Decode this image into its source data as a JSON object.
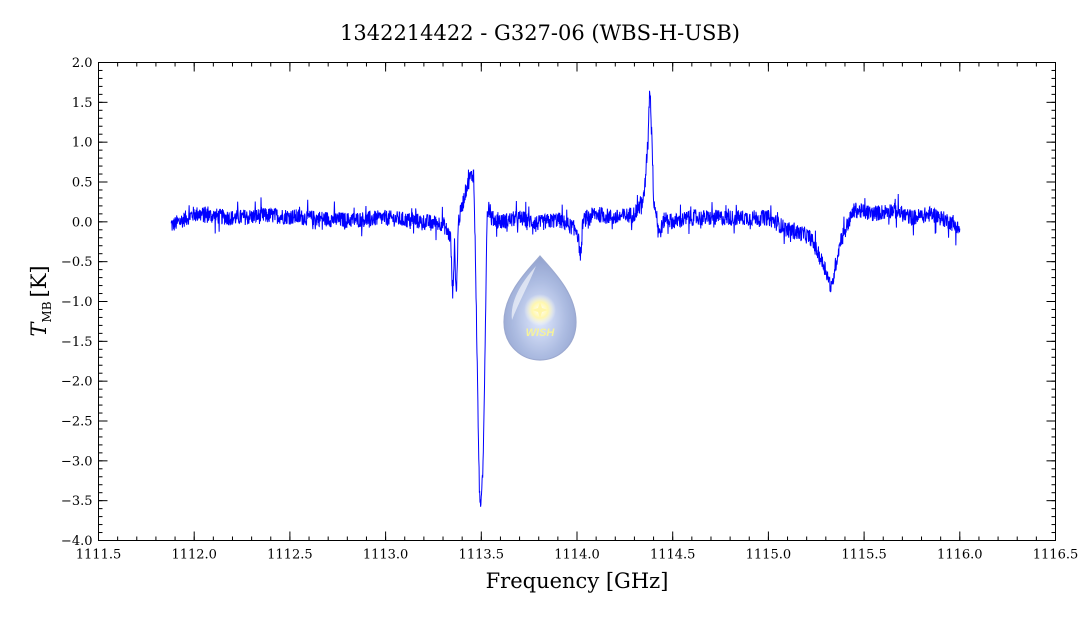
{
  "chart_data": {
    "type": "line",
    "title": "1342214422 - G327-06 (WBS-H-USB)",
    "xlabel": "Frequency [GHz]",
    "ylabel_main": "T",
    "ylabel_sub": "MB",
    "ylabel_unit": "[K]",
    "xlim": [
      1111.5,
      1116.5
    ],
    "ylim": [
      -4.0,
      2.0
    ],
    "x_ticks": [
      "1111.5",
      "1112.0",
      "1112.5",
      "1113.0",
      "1113.5",
      "1114.0",
      "1114.5",
      "1115.0",
      "1115.5",
      "1116.0",
      "1116.5"
    ],
    "x_tick_values": [
      1111.5,
      1112.0,
      1112.5,
      1113.0,
      1113.5,
      1114.0,
      1114.5,
      1115.0,
      1115.5,
      1116.0,
      1116.5
    ],
    "y_ticks": [
      "−4.0",
      "−3.5",
      "−3.0",
      "−2.5",
      "−2.0",
      "−1.5",
      "−1.0",
      "−0.5",
      "0.0",
      "0.5",
      "1.0",
      "1.5",
      "2.0"
    ],
    "y_tick_values": [
      -4.0,
      -3.5,
      -3.0,
      -2.5,
      -2.0,
      -1.5,
      -1.0,
      -0.5,
      0.0,
      0.5,
      1.0,
      1.5,
      2.0
    ],
    "x_minor_step": 0.1,
    "y_minor_step": 0.1,
    "grid": false,
    "line_color": "#0000ff",
    "series": [
      {
        "x": [
          1111.88,
          1112.0,
          1112.2,
          1112.4,
          1112.6,
          1112.8,
          1113.0,
          1113.2,
          1113.3,
          1113.34,
          1113.35,
          1113.36,
          1113.37,
          1113.38,
          1113.4,
          1113.42,
          1113.44,
          1113.46,
          1113.47,
          1113.48,
          1113.49,
          1113.5,
          1113.51,
          1113.52,
          1113.53,
          1113.54,
          1113.55,
          1113.6,
          1113.7,
          1113.8,
          1113.9,
          1114.0,
          1114.02,
          1114.03,
          1114.05,
          1114.1,
          1114.2,
          1114.3,
          1114.35,
          1114.37,
          1114.38,
          1114.39,
          1114.4,
          1114.43,
          1114.46,
          1114.5,
          1114.6,
          1114.8,
          1115.0,
          1115.1,
          1115.18,
          1115.22,
          1115.26,
          1115.3,
          1115.33,
          1115.35,
          1115.38,
          1115.45,
          1115.55,
          1115.65,
          1115.75,
          1115.85,
          1115.95,
          1116.0
        ],
        "y": [
          -0.05,
          0.1,
          0.05,
          0.08,
          0.05,
          0.02,
          0.05,
          0.0,
          -0.02,
          -0.2,
          -0.95,
          -0.3,
          -0.95,
          0.0,
          0.2,
          0.4,
          0.55,
          0.6,
          -0.5,
          -2.0,
          -3.4,
          -3.55,
          -3.0,
          -1.5,
          0.1,
          0.2,
          0.05,
          0.0,
          0.05,
          -0.02,
          0.03,
          -0.1,
          -0.45,
          0.0,
          0.05,
          0.1,
          0.05,
          0.1,
          0.3,
          1.0,
          1.7,
          1.2,
          0.3,
          -0.15,
          0.05,
          0.0,
          0.05,
          0.05,
          0.05,
          -0.1,
          -0.15,
          -0.2,
          -0.4,
          -0.6,
          -0.85,
          -0.55,
          -0.2,
          0.15,
          0.1,
          0.15,
          0.05,
          0.1,
          0.0,
          -0.1
        ]
      }
    ],
    "noise_amplitude": 0.1
  }
}
